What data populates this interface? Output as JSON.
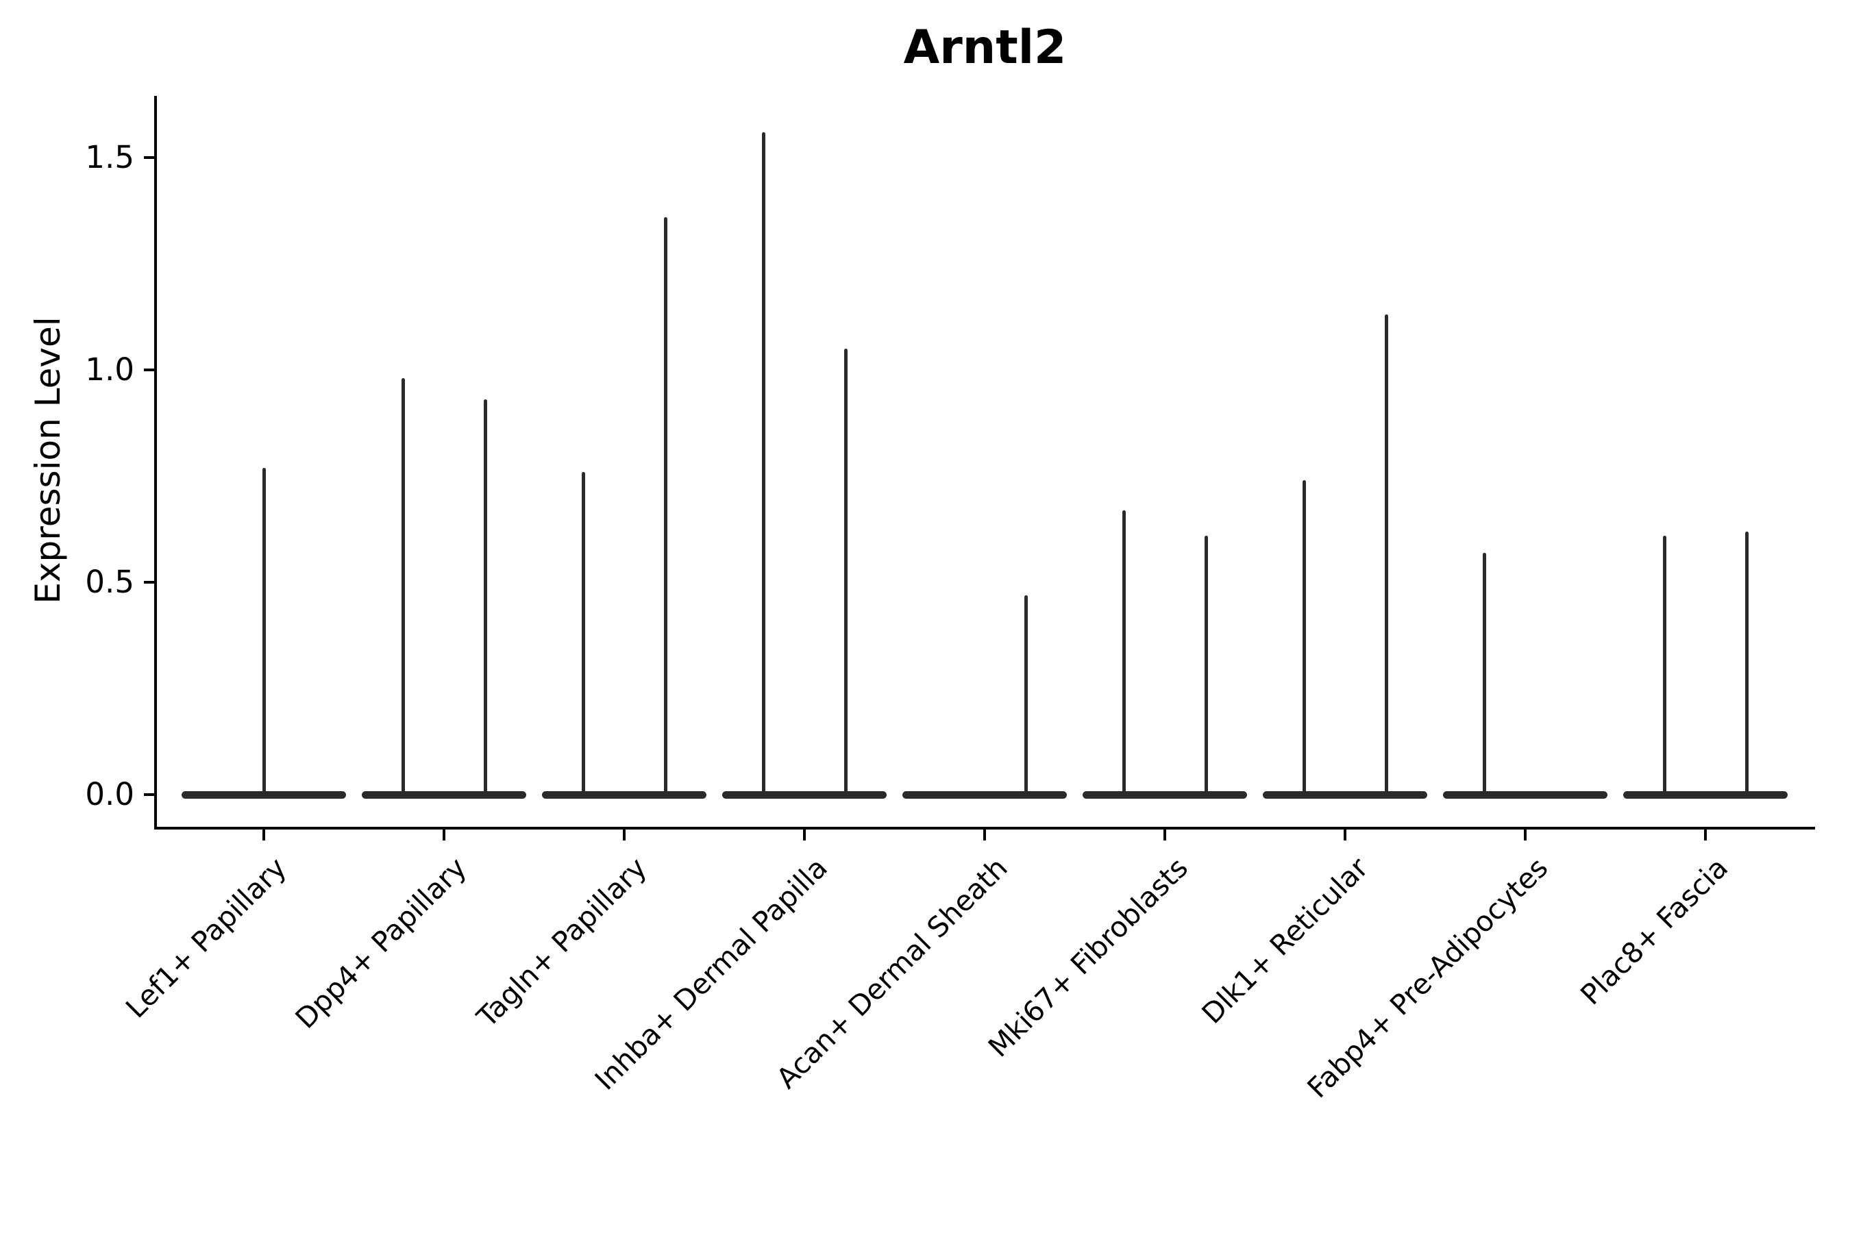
{
  "title": "Arntl2",
  "colors": {
    "violin": "#2a2a2a",
    "axis": "#000000",
    "text": "#000000",
    "background": "#ffffff"
  },
  "chart_data": {
    "type": "violin",
    "title": "Arntl2",
    "xlabel": "",
    "ylabel": "Expression Level",
    "ylim": [
      -0.08,
      1.64
    ],
    "yticks": [
      0.0,
      0.5,
      1.0,
      1.5
    ],
    "yticklabels": [
      "0.0",
      "0.5",
      "1.0",
      "1.5"
    ],
    "grid": false,
    "legend": null,
    "categories": [
      "Lef1+ Papillary",
      "Dpp4+ Papillary",
      "Tagln+ Papillary",
      "Inhba+ Dermal Papilla",
      "Acan+ Dermal Sheath",
      "Mki67+ Fibroblasts",
      "Dlk1+ Reticular",
      "Fabp4+ Pre-Adipocytes",
      "Plac8+ Fascia"
    ],
    "violins": [
      {
        "category": "Lef1+ Papillary",
        "spikes": [
          {
            "position": "center",
            "max": 0.77
          }
        ]
      },
      {
        "category": "Dpp4+ Papillary",
        "spikes": [
          {
            "position": "left",
            "max": 0.98
          },
          {
            "position": "right",
            "max": 0.93
          }
        ]
      },
      {
        "category": "Tagln+ Papillary",
        "spikes": [
          {
            "position": "left",
            "max": 0.76
          },
          {
            "position": "right",
            "max": 1.36
          }
        ]
      },
      {
        "category": "Inhba+ Dermal Papilla",
        "spikes": [
          {
            "position": "left",
            "max": 1.56
          },
          {
            "position": "right",
            "max": 1.05
          }
        ]
      },
      {
        "category": "Acan+ Dermal Sheath",
        "spikes": [
          {
            "position": "right",
            "max": 0.47
          }
        ]
      },
      {
        "category": "Mki67+ Fibroblasts",
        "spikes": [
          {
            "position": "left",
            "max": 0.67
          },
          {
            "position": "right",
            "max": 0.61
          }
        ]
      },
      {
        "category": "Dlk1+ Reticular",
        "spikes": [
          {
            "position": "left",
            "max": 0.74
          },
          {
            "position": "right",
            "max": 1.13
          }
        ]
      },
      {
        "category": "Fabp4+ Pre-Adipocytes",
        "spikes": [
          {
            "position": "left",
            "max": 0.57
          }
        ]
      },
      {
        "category": "Plac8+ Fascia",
        "spikes": [
          {
            "position": "left",
            "max": 0.61
          },
          {
            "position": "right",
            "max": 0.62
          }
        ]
      }
    ]
  }
}
